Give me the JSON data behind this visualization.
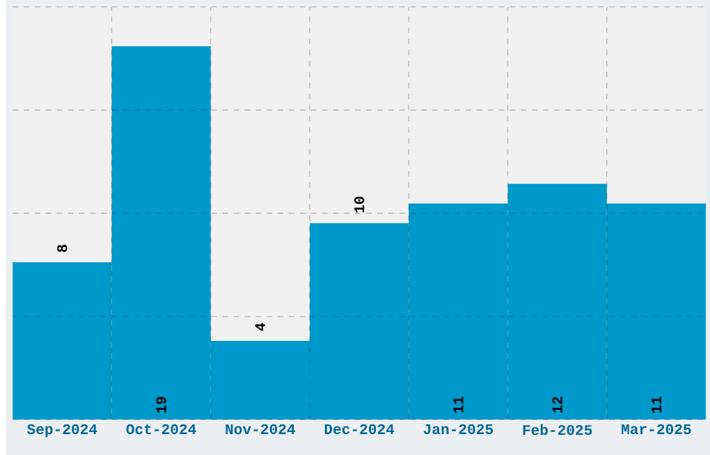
{
  "chart_data": {
    "type": "bar",
    "categories": [
      "Sep-2024",
      "Oct-2024",
      "Nov-2024",
      "Dec-2024",
      "Jan-2025",
      "Feb-2025",
      "Mar-2025"
    ],
    "values": [
      8,
      19,
      4,
      10,
      11,
      12,
      11
    ],
    "color": "#0099cc",
    "ylim": [
      0,
      21
    ],
    "yticks": [
      {
        "value": 0,
        "label": null
      },
      {
        "value": 5.25,
        "label": null
      },
      {
        "value": 10.5,
        "label": null
      },
      {
        "value": 15.75,
        "label": null
      },
      {
        "value": 21,
        "label": null
      }
    ],
    "grid": true,
    "data_labels": true
  }
}
